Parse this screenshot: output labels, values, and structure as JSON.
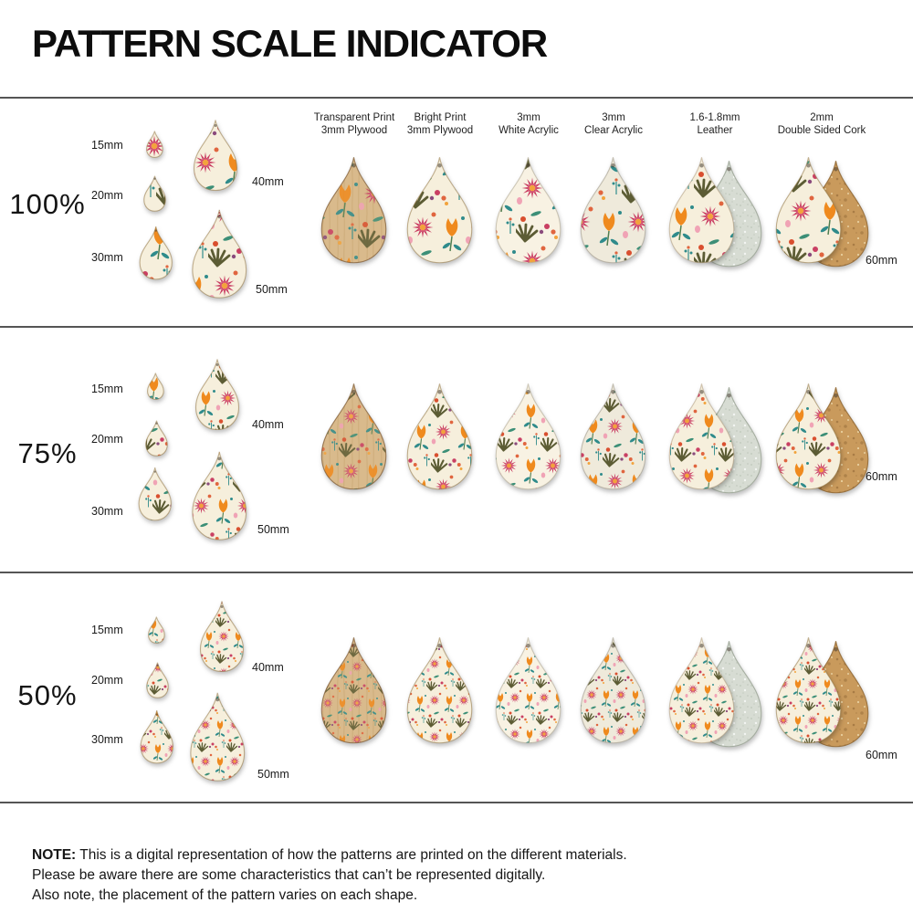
{
  "title": "PATTERN SCALE INDICATOR",
  "columns": [
    {
      "line1": "Transparent Print",
      "line2": "3mm Plywood"
    },
    {
      "line1": "Bright Print",
      "line2": "3mm Plywood"
    },
    {
      "line1": "3mm",
      "line2": "White Acrylic"
    },
    {
      "line1": "3mm",
      "line2": "Clear Acrylic"
    },
    {
      "line1": "1.6-1.8mm",
      "line2": "Leather"
    },
    {
      "line1": "2mm",
      "line2": "Double Sided Cork"
    }
  ],
  "rows": [
    {
      "scale": "100%",
      "sizes": [
        "15mm",
        "20mm",
        "30mm",
        "40mm",
        "50mm",
        "60mm"
      ]
    },
    {
      "scale": "75%",
      "sizes": [
        "15mm",
        "20mm",
        "30mm",
        "40mm",
        "50mm",
        "60mm"
      ]
    },
    {
      "scale": "50%",
      "sizes": [
        "15mm",
        "20mm",
        "30mm",
        "40mm",
        "50mm",
        "60mm"
      ]
    }
  ],
  "note": {
    "label": "NOTE:",
    "lines": [
      "This is a digital representation of how the patterns are printed on the different materials.",
      "Please be aware there are some characteristics that can’t be represented digitally.",
      "Also note, the placement of the pattern varies on each shape."
    ]
  },
  "colors": {
    "cream": "#f6efdc",
    "acrylic_white": "#f8f2e3",
    "acrylic_clear": "#efeadb",
    "plywood": "#d9ba8c",
    "wood_grain": "#c2a06c",
    "cork": "#c99a5c",
    "cork_dot": "#a87c45",
    "leather": "#d7dcd3",
    "leather_dot": "#c4ccc0",
    "pink": "#ef7f98",
    "soft_pink": "#f0a3b5",
    "crimson": "#c93f63",
    "red": "#d94f2f",
    "coral": "#e0653f",
    "orange": "#ef8a1e",
    "golden": "#f2a33c",
    "teal": "#2f8b8b",
    "green": "#4f7d4f",
    "leaf_green": "#3c8f77",
    "olive": "#5c5c34",
    "purple": "#8a4a7c",
    "divider": "#555555"
  }
}
